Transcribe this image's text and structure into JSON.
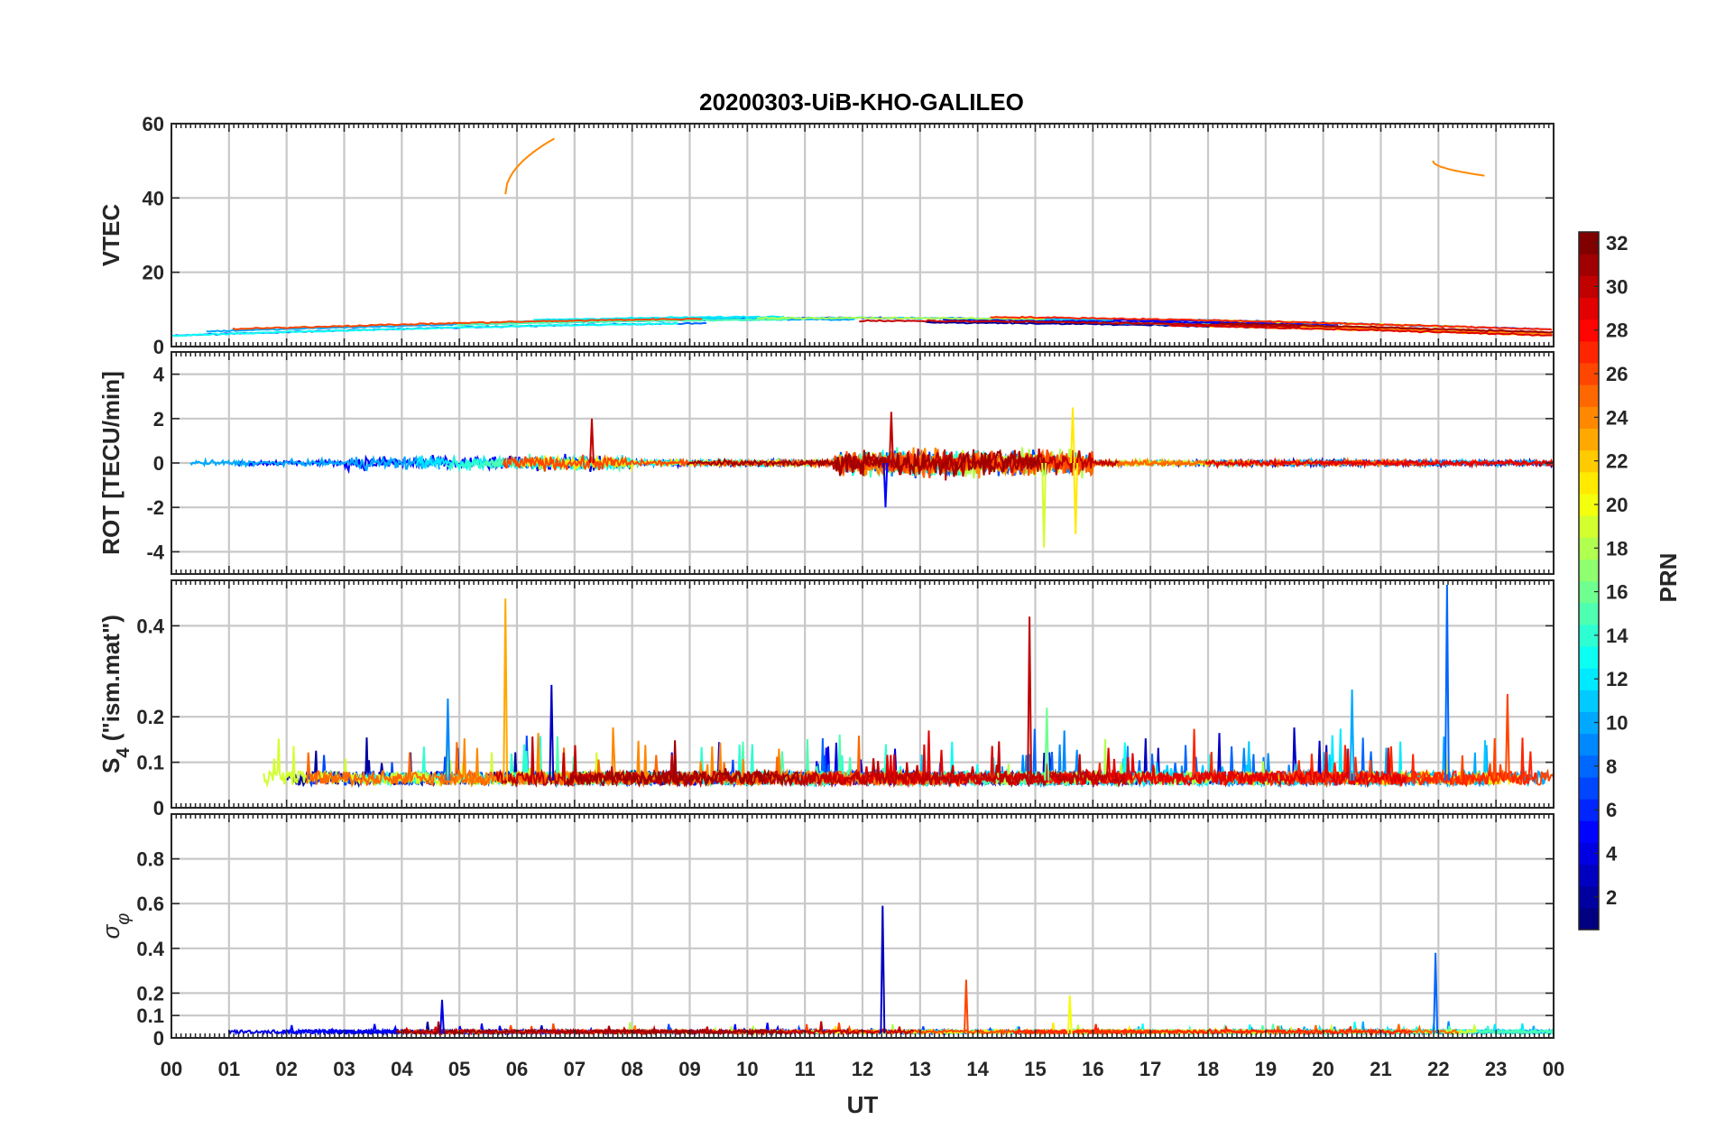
{
  "chart_data": {
    "type": "line",
    "title": "20200303-UiB-KHO-GALILEO",
    "xlabel": "UT",
    "x_range_hours": [
      0,
      24
    ],
    "x_tick_labels": [
      "00",
      "01",
      "02",
      "03",
      "04",
      "05",
      "06",
      "07",
      "08",
      "09",
      "10",
      "11",
      "12",
      "13",
      "14",
      "15",
      "16",
      "17",
      "18",
      "19",
      "20",
      "21",
      "22",
      "23",
      "00"
    ],
    "grid": true,
    "colorbar": {
      "label": "PRN",
      "range": [
        1,
        32
      ],
      "tick_labels": [
        "2",
        "4",
        "6",
        "8",
        "10",
        "12",
        "14",
        "16",
        "18",
        "20",
        "22",
        "24",
        "26",
        "28",
        "30",
        "32"
      ],
      "colormap": "jet",
      "placement": "right"
    },
    "panels": [
      {
        "id": "vtec",
        "ylabel": "VTEC",
        "ylim": [
          0,
          60
        ],
        "yticks": [
          0,
          20,
          40,
          60
        ],
        "features": [
          {
            "prn": 24,
            "x_hours": [
              5.8,
              6.65
            ],
            "y": [
              41,
              56
            ]
          },
          {
            "prn": 24,
            "x_hours": [
              21.9,
              22.8
            ],
            "y": [
              50,
              46
            ]
          }
        ],
        "baseline_range": [
          1,
          10
        ]
      },
      {
        "id": "rot",
        "ylabel": "ROT [TECU/min]",
        "ylim": [
          -5,
          5
        ],
        "yticks": [
          -4,
          -2,
          0,
          2,
          4
        ],
        "peaks": [
          {
            "prn": 19,
            "x_hours": 15.15,
            "y": -3.8
          },
          {
            "prn": 21,
            "x_hours": 15.65,
            "y": 2.5
          },
          {
            "prn": 21,
            "x_hours": 15.7,
            "y": -3.2
          },
          {
            "prn": 30,
            "x_hours": 12.5,
            "y": 2.3
          },
          {
            "prn": 5,
            "x_hours": 12.4,
            "y": -2.0
          },
          {
            "prn": 30,
            "x_hours": 7.3,
            "y": 2.0
          }
        ]
      },
      {
        "id": "s4",
        "ylabel": "S4 (\"ism.mat\")",
        "ylabel_main": "S",
        "ylabel_sub": "4",
        "ylabel_rest": " (\"ism.mat\")",
        "ylim": [
          0,
          0.5
        ],
        "yticks": [
          0,
          0.1,
          0.2,
          0.4
        ],
        "ytick_labels": [
          "0",
          "0.1",
          "0.2",
          "0.4"
        ],
        "peaks": [
          {
            "prn": 23,
            "x_hours": 5.8,
            "y": 0.46
          },
          {
            "prn": 30,
            "x_hours": 14.9,
            "y": 0.42
          },
          {
            "prn": 8,
            "x_hours": 22.15,
            "y": 0.49
          },
          {
            "prn": 3,
            "x_hours": 6.6,
            "y": 0.27
          },
          {
            "prn": 9,
            "x_hours": 4.8,
            "y": 0.24
          },
          {
            "prn": 26,
            "x_hours": 23.2,
            "y": 0.25
          },
          {
            "prn": 10,
            "x_hours": 20.5,
            "y": 0.26
          },
          {
            "prn": 16,
            "x_hours": 15.2,
            "y": 0.22
          }
        ]
      },
      {
        "id": "sigma_phi",
        "ylabel": "σ φ",
        "ylabel_main": "σ",
        "ylabel_sub": "φ",
        "ylim": [
          0,
          1.0
        ],
        "yticks": [
          0,
          0.1,
          0.2,
          0.4,
          0.6,
          0.8
        ],
        "ytick_labels": [
          "0",
          "0.1",
          "0.2",
          "0.4",
          "0.6",
          "0.8"
        ],
        "peaks": [
          {
            "prn": 3,
            "x_hours": 12.35,
            "y": 0.59
          },
          {
            "prn": 8,
            "x_hours": 21.95,
            "y": 0.38
          },
          {
            "prn": 26,
            "x_hours": 13.8,
            "y": 0.26
          },
          {
            "prn": 20,
            "x_hours": 15.6,
            "y": 0.19
          },
          {
            "prn": 4,
            "x_hours": 4.7,
            "y": 0.17
          }
        ]
      }
    ]
  }
}
